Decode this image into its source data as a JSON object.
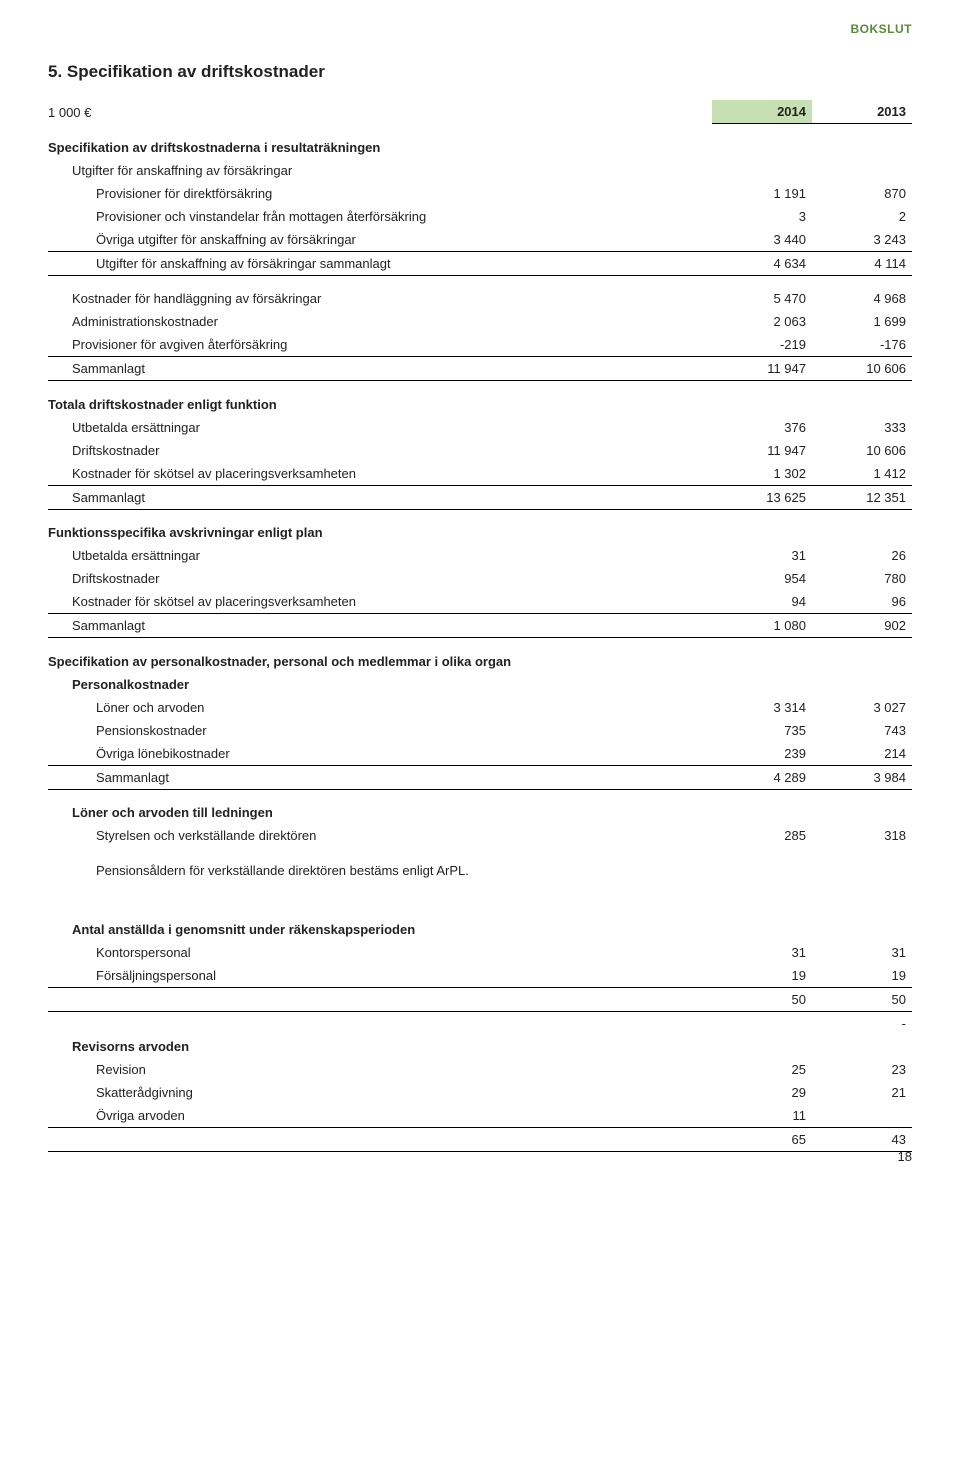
{
  "header_tag": "BOKSLUT",
  "header_tag_color": "#5b8a3a",
  "section_title": "5. Specifikation av driftskostnader",
  "unit_label": "1 000 €",
  "year1": "2014",
  "year2": "2013",
  "year_header_bg": "#c6e0b4",
  "sections": {
    "title1": "Specifikation av driftskostnaderna i resultaträkningen",
    "sub1": "Utgifter för anskaffning av försäkringar",
    "rows1": [
      {
        "label": "Provisioner för direktförsäkring",
        "v1": "1 191",
        "v2": "870"
      },
      {
        "label": "Provisioner och vinstandelar från mottagen återförsäkring",
        "v1": "3",
        "v2": "2"
      },
      {
        "label": "Övriga utgifter för anskaffning av försäkringar",
        "v1": "3 440",
        "v2": "3 243"
      },
      {
        "label": "Utgifter för anskaffning av försäkringar sammanlagt",
        "v1": "4 634",
        "v2": "4 114"
      }
    ],
    "rows2": [
      {
        "label": "Kostnader för handläggning av försäkringar",
        "v1": "5 470",
        "v2": "4 968"
      },
      {
        "label": "Administrationskostnader",
        "v1": "2 063",
        "v2": "1 699"
      },
      {
        "label": "Provisioner för avgiven återförsäkring",
        "v1": "-219",
        "v2": "-176"
      },
      {
        "label": "Sammanlagt",
        "v1": "11 947",
        "v2": "10 606"
      }
    ],
    "title3": "Totala driftskostnader enligt funktion",
    "rows3": [
      {
        "label": "Utbetalda ersättningar",
        "v1": "376",
        "v2": "333"
      },
      {
        "label": "Driftskostnader",
        "v1": "11 947",
        "v2": "10 606"
      },
      {
        "label": "Kostnader för skötsel av placeringsverksamheten",
        "v1": "1 302",
        "v2": "1 412"
      },
      {
        "label": "Sammanlagt",
        "v1": "13 625",
        "v2": "12 351"
      }
    ],
    "title4": "Funktionsspecifika avskrivningar enligt plan",
    "rows4": [
      {
        "label": "Utbetalda ersättningar",
        "v1": "31",
        "v2": "26"
      },
      {
        "label": "Driftskostnader",
        "v1": "954",
        "v2": "780"
      },
      {
        "label": "Kostnader för skötsel av placeringsverksamheten",
        "v1": "94",
        "v2": "96"
      },
      {
        "label": "Sammanlagt",
        "v1": "1 080",
        "v2": "902"
      }
    ],
    "title5": "Specifikation av personalkostnader, personal och medlemmar i olika organ",
    "sub5": "Personalkostnader",
    "rows5": [
      {
        "label": "Löner och arvoden",
        "v1": "3 314",
        "v2": "3 027"
      },
      {
        "label": "Pensionskostnader",
        "v1": "735",
        "v2": "743"
      },
      {
        "label": "Övriga lönebikostnader",
        "v1": "239",
        "v2": "214"
      },
      {
        "label": "Sammanlagt",
        "v1": "4 289",
        "v2": "3 984"
      }
    ],
    "title6": "Löner och arvoden till ledningen",
    "rows6": [
      {
        "label": "Styrelsen och verkställande direktören",
        "v1": "285",
        "v2": "318"
      }
    ],
    "note6": "Pensionsåldern för verkställande direktören bestäms enligt ArPL.",
    "title7": "Antal anställda i genomsnitt under räkenskapsperioden",
    "rows7": [
      {
        "label": "Kontorspersonal",
        "v1": "31",
        "v2": "31"
      },
      {
        "label": "Försäljningspersonal",
        "v1": "19",
        "v2": "19"
      },
      {
        "label": "",
        "v1": "50",
        "v2": "50"
      }
    ],
    "dash": "-",
    "title8": "Revisorns arvoden",
    "rows8": [
      {
        "label": "Revision",
        "v1": "25",
        "v2": "23"
      },
      {
        "label": "Skatterådgivning",
        "v1": "29",
        "v2": "21"
      },
      {
        "label": "Övriga arvoden",
        "v1": "11",
        "v2": ""
      },
      {
        "label": "",
        "v1": "65",
        "v2": "43"
      }
    ]
  },
  "page_number": "18"
}
